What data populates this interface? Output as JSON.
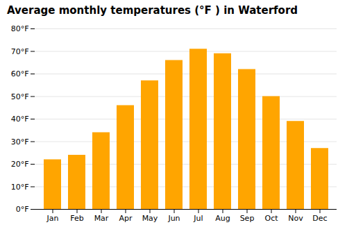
{
  "chart_data": {
    "type": "bar",
    "title": "Average monthly temperatures (°F ) in Waterford",
    "categories": [
      "Jan",
      "Feb",
      "Mar",
      "Apr",
      "May",
      "Jun",
      "Jul",
      "Aug",
      "Sep",
      "Oct",
      "Nov",
      "Dec"
    ],
    "values": [
      22,
      24,
      34,
      46,
      57,
      66,
      71,
      69,
      62,
      50,
      39,
      27
    ],
    "color": "#FFA500",
    "ylim": [
      0,
      80
    ],
    "yticks": [
      {
        "value": 0,
        "label": "0°F"
      },
      {
        "value": 10,
        "label": "10°F"
      },
      {
        "value": 20,
        "label": "20°F"
      },
      {
        "value": 30,
        "label": "30°F"
      },
      {
        "value": 40,
        "label": "40°F"
      },
      {
        "value": 50,
        "label": "50°F"
      },
      {
        "value": 60,
        "label": "60°F"
      },
      {
        "value": 70,
        "label": "70°F"
      },
      {
        "value": 80,
        "label": "80°F"
      }
    ],
    "grid": true
  }
}
